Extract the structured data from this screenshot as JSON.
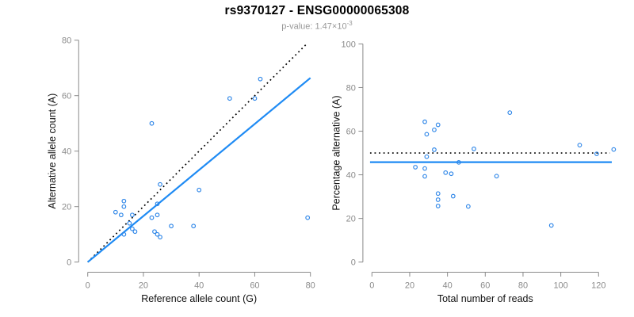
{
  "header": {
    "title": "rs9370127 - ENSG00000065308",
    "pvalue_label": "p-value: 1.47×10",
    "pvalue_exponent": "-3"
  },
  "colors": {
    "point_blue": "#2E86E8",
    "fit_blue": "#1F8BF4",
    "identity_black": "#000000",
    "axis_gray": "#8a8a8a",
    "axis_title_color": "#111111"
  },
  "chart_data": [
    {
      "type": "scatter",
      "name": "allele-counts",
      "xlabel": "Reference allele count (G)",
      "ylabel": "Alternative allele count (A)",
      "xlim": [
        0,
        80
      ],
      "ylim": [
        0,
        80
      ],
      "xticks": [
        0,
        20,
        40,
        60,
        80
      ],
      "yticks": [
        0,
        20,
        40,
        60,
        80
      ],
      "point_color": "#2E86E8",
      "points": [
        [
          10,
          18
        ],
        [
          12,
          17
        ],
        [
          13,
          22
        ],
        [
          13,
          20
        ],
        [
          13,
          10
        ],
        [
          15,
          14
        ],
        [
          16,
          17
        ],
        [
          16,
          12
        ],
        [
          17,
          11
        ],
        [
          23,
          50
        ],
        [
          23,
          16
        ],
        [
          24,
          11
        ],
        [
          25,
          17
        ],
        [
          25,
          21
        ],
        [
          25,
          10
        ],
        [
          26,
          28
        ],
        [
          26,
          9
        ],
        [
          30,
          13
        ],
        [
          38,
          13
        ],
        [
          40,
          26
        ],
        [
          51,
          59
        ],
        [
          60,
          59
        ],
        [
          62,
          66
        ],
        [
          79,
          16
        ]
      ],
      "lines": [
        {
          "name": "identity-line",
          "style": "dotted",
          "color": "#000000",
          "from": [
            0,
            0
          ],
          "to": [
            78.5,
            78.5
          ]
        },
        {
          "name": "fit-line",
          "style": "solid",
          "color": "#1F8BF4",
          "from": [
            0,
            0
          ],
          "to": [
            80,
            66.4
          ]
        }
      ]
    },
    {
      "type": "scatter",
      "name": "percentage-vs-reads",
      "xlabel": "Total number of reads",
      "ylabel": "Percentage alternative (A)",
      "xlim": [
        0,
        120
      ],
      "ylim": [
        0,
        100
      ],
      "xticks": [
        0,
        20,
        40,
        60,
        80,
        100,
        120
      ],
      "yticks": [
        0,
        20,
        40,
        60,
        80,
        100
      ],
      "point_color": "#2E86E8",
      "points": [
        [
          28,
          64.3
        ],
        [
          29,
          58.6
        ],
        [
          35,
          62.9
        ],
        [
          33,
          60.6
        ],
        [
          23,
          43.5
        ],
        [
          29,
          48.3
        ],
        [
          33,
          51.5
        ],
        [
          28,
          42.9
        ],
        [
          28,
          39.3
        ],
        [
          73,
          68.5
        ],
        [
          39,
          41.0
        ],
        [
          35,
          31.4
        ],
        [
          42,
          40.5
        ],
        [
          46,
          45.7
        ],
        [
          35,
          28.6
        ],
        [
          54,
          51.9
        ],
        [
          35,
          25.7
        ],
        [
          43,
          30.2
        ],
        [
          51,
          25.5
        ],
        [
          66,
          39.4
        ],
        [
          110,
          53.6
        ],
        [
          119,
          49.6
        ],
        [
          128,
          51.6
        ],
        [
          95,
          16.8
        ]
      ],
      "lines": [
        {
          "name": "expected-line",
          "style": "dotted",
          "color": "#000000",
          "from": [
            -1,
            50
          ],
          "to": [
            126,
            50
          ]
        },
        {
          "name": "mean-line",
          "style": "solid",
          "color": "#1F8BF4",
          "from": [
            -1,
            45.8
          ],
          "to": [
            127,
            45.8
          ]
        }
      ]
    }
  ]
}
